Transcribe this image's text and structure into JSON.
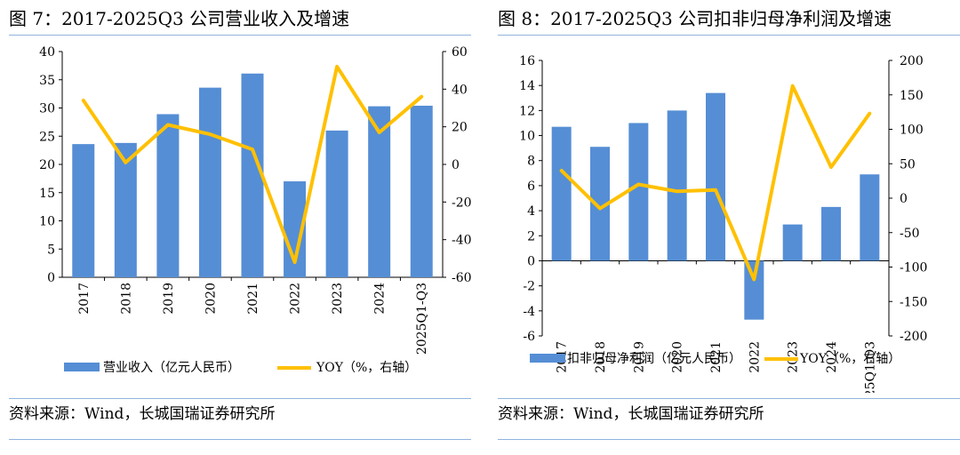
{
  "figures": [
    {
      "title": "图 7：2017-2025Q3 公司营业收入及增速",
      "source": "资料来源：Wind，长城国瑞证券研究所"
    },
    {
      "title": "图 8：2017-2025Q3 公司扣非归母净利润及增速",
      "source": "资料来源：Wind，长城国瑞证券研究所"
    }
  ],
  "chart_data": [
    {
      "type": "bar",
      "categories": [
        "2017",
        "2018",
        "2019",
        "2020",
        "2021",
        "2022",
        "2023",
        "2024",
        "2025Q1-Q3"
      ],
      "series": [
        {
          "name": "营业收入（亿元人民币）",
          "type": "bar",
          "axis": "left",
          "values": [
            23.6,
            23.8,
            28.9,
            33.6,
            36.1,
            17.0,
            26.0,
            30.3,
            30.4
          ]
        },
        {
          "name": "YOY（%，右轴）",
          "type": "line",
          "axis": "right",
          "values": [
            34,
            1,
            21,
            16,
            8,
            -52,
            52,
            17,
            36
          ]
        }
      ],
      "left_axis": {
        "ylim": [
          0,
          40
        ],
        "ticks": [
          "0",
          "5",
          "10",
          "15",
          "20",
          "25",
          "30",
          "35",
          "40"
        ]
      },
      "right_axis": {
        "ylim": [
          -60,
          60
        ],
        "ticks": [
          "-60",
          "-40",
          "-20",
          "0",
          "20",
          "40",
          "60"
        ]
      },
      "legend": "bottom",
      "colors": {
        "bar": "#558ed5",
        "line": "#ffc000"
      }
    },
    {
      "type": "bar",
      "categories": [
        "2017",
        "2018",
        "2019",
        "2020",
        "2021",
        "2022",
        "2023",
        "2024",
        "2025Q1-Q3"
      ],
      "series": [
        {
          "name": "扣非归母净利润（亿元人民币）",
          "type": "bar",
          "axis": "left",
          "values": [
            10.7,
            9.1,
            11.0,
            12.0,
            13.4,
            -4.7,
            2.9,
            4.3,
            6.9
          ]
        },
        {
          "name": "YOY（%，右轴）",
          "type": "line",
          "axis": "right",
          "values": [
            40,
            -15,
            20,
            10,
            12,
            -118,
            163,
            45,
            123
          ]
        }
      ],
      "left_axis": {
        "ylim": [
          -6,
          16
        ],
        "ticks": [
          "-6",
          "-4",
          "-2",
          "0",
          "2",
          "4",
          "6",
          "8",
          "10",
          "12",
          "14",
          "16"
        ]
      },
      "right_axis": {
        "ylim": [
          -200,
          200
        ],
        "ticks": [
          "-200",
          "-150",
          "-100",
          "-50",
          "0",
          "50",
          "100",
          "150",
          "200"
        ]
      },
      "legend": "bottom",
      "colors": {
        "bar": "#558ed5",
        "line": "#ffc000"
      }
    }
  ]
}
